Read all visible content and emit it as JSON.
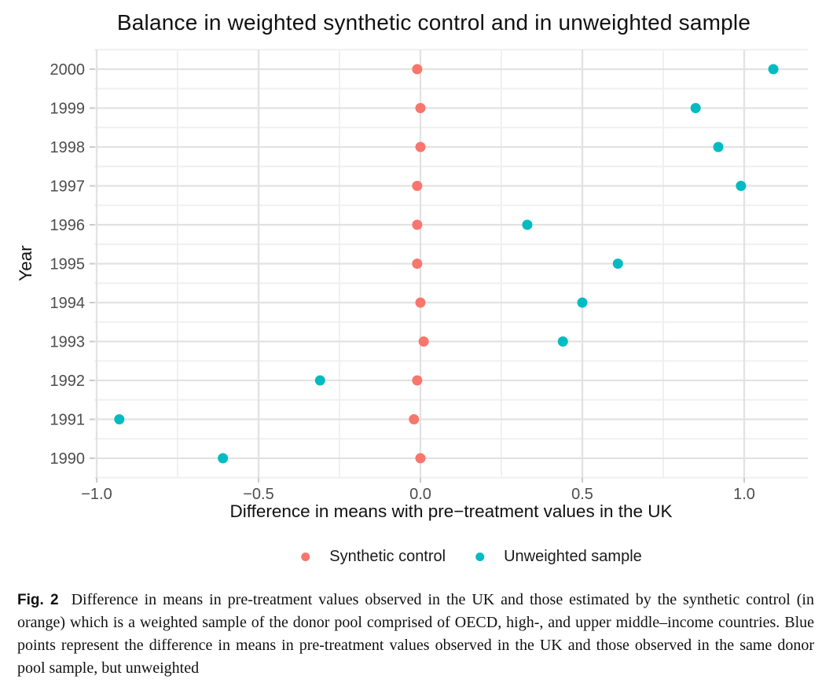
{
  "chart_data": {
    "type": "scatter",
    "title": "Balance in weighted synthetic control and in unweighted sample",
    "xlabel": "Difference in means with pre−treatment values in the UK",
    "ylabel": "Year",
    "categories": [
      2000,
      1999,
      1998,
      1997,
      1996,
      1995,
      1994,
      1993,
      1992,
      1991,
      1990
    ],
    "series": [
      {
        "name": "Synthetic control",
        "color": "#F8766D",
        "values": [
          -0.01,
          0.0,
          0.0,
          -0.01,
          -0.01,
          -0.01,
          0.0,
          0.01,
          -0.01,
          -0.02,
          0.0
        ]
      },
      {
        "name": "Unweighted sample",
        "color": "#00BCC2",
        "values": [
          1.09,
          0.85,
          0.92,
          0.99,
          0.33,
          0.61,
          0.5,
          0.44,
          -0.31,
          -0.93,
          -0.61
        ]
      }
    ],
    "xlim": [
      -1.04,
      1.2
    ],
    "x_major_ticks": [
      -1.0,
      -0.5,
      0.0,
      0.5,
      1.0
    ],
    "x_tick_labels": [
      "−1.0",
      "−0.5",
      "0.0",
      "0.5",
      "1.0"
    ],
    "x_minor_ticks": [
      -0.75,
      -0.25,
      0.25,
      0.75
    ],
    "grid": true,
    "legend_position": "bottom"
  },
  "caption": {
    "label": "Fig. 2",
    "text": "Difference in means in pre-treatment values observed in the UK and those estimated by the synthetic control (in orange) which is a weighted sample of the donor pool comprised of OECD, high-, and upper middle–income countries. Blue points represent the difference in means in pre-treatment values observed in the UK and those observed in the same donor pool sample, but unweighted"
  }
}
